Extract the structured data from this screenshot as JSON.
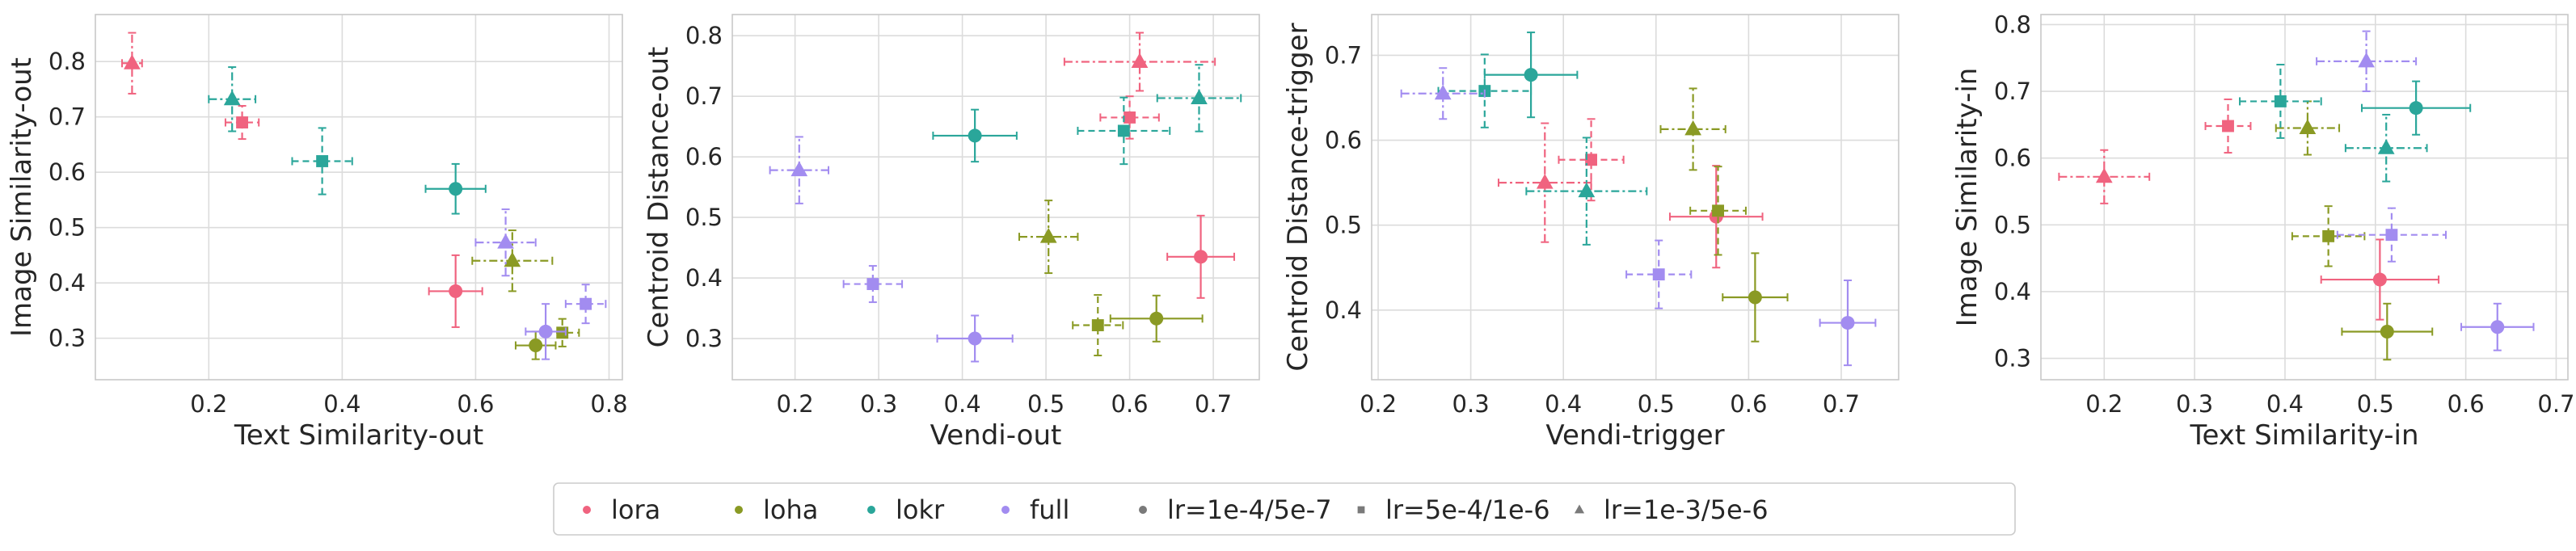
{
  "colors": {
    "lora": "#f0637f",
    "loha": "#8a9a24",
    "lokr": "#2aa69a",
    "full": "#a28cf0",
    "neutral": "#7a7a7a",
    "grid": "#dcdcdc",
    "spine": "#c8c8c8"
  },
  "legend": {
    "items": [
      {
        "label": "lora",
        "kind": "color",
        "key": "lora"
      },
      {
        "label": "loha",
        "kind": "color",
        "key": "loha"
      },
      {
        "label": "lokr",
        "kind": "color",
        "key": "lokr"
      },
      {
        "label": "full",
        "kind": "color",
        "key": "full"
      },
      {
        "label": "lr=1e-4/5e-7",
        "kind": "marker",
        "marker": "circle"
      },
      {
        "label": "lr=5e-4/1e-6",
        "kind": "marker",
        "marker": "square"
      },
      {
        "label": "lr=1e-3/5e-6",
        "kind": "marker",
        "marker": "triangle"
      }
    ]
  },
  "chart_data": [
    {
      "type": "scatter",
      "xlabel": "Text Similarity-out",
      "ylabel": "Image Similarity-out",
      "xlim": [
        0.03,
        0.82
      ],
      "ylim": [
        0.225,
        0.885
      ],
      "xticks": [
        0.2,
        0.4,
        0.6,
        0.8
      ],
      "yticks": [
        0.3,
        0.4,
        0.5,
        0.6,
        0.7,
        0.8
      ],
      "xtick_labels": [
        "0.2",
        "0.4",
        "0.6",
        "0.8"
      ],
      "ytick_labels": [
        "0.3",
        "0.4",
        "0.5",
        "0.6",
        "0.7",
        "0.8"
      ],
      "grid": true,
      "points": [
        {
          "method": "lora",
          "lr": "lr=1e-4/5e-7",
          "x": 0.57,
          "y": 0.385,
          "xerr": 0.04,
          "yerr": 0.065
        },
        {
          "method": "lora",
          "lr": "lr=5e-4/1e-6",
          "x": 0.25,
          "y": 0.69,
          "xerr": 0.025,
          "yerr": 0.03
        },
        {
          "method": "lora",
          "lr": "lr=1e-3/5e-6",
          "x": 0.085,
          "y": 0.797,
          "xerr": 0.015,
          "yerr": 0.055
        },
        {
          "method": "loha",
          "lr": "lr=1e-4/5e-7",
          "x": 0.69,
          "y": 0.287,
          "xerr": 0.03,
          "yerr": 0.025
        },
        {
          "method": "loha",
          "lr": "lr=5e-4/1e-6",
          "x": 0.73,
          "y": 0.31,
          "xerr": 0.025,
          "yerr": 0.025
        },
        {
          "method": "loha",
          "lr": "lr=1e-3/5e-6",
          "x": 0.655,
          "y": 0.44,
          "xerr": 0.06,
          "yerr": 0.055
        },
        {
          "method": "lokr",
          "lr": "lr=1e-4/5e-7",
          "x": 0.57,
          "y": 0.57,
          "xerr": 0.045,
          "yerr": 0.045
        },
        {
          "method": "lokr",
          "lr": "lr=5e-4/1e-6",
          "x": 0.37,
          "y": 0.62,
          "xerr": 0.045,
          "yerr": 0.06
        },
        {
          "method": "lokr",
          "lr": "lr=1e-3/5e-6",
          "x": 0.235,
          "y": 0.732,
          "xerr": 0.035,
          "yerr": 0.058
        },
        {
          "method": "full",
          "lr": "lr=1e-4/5e-7",
          "x": 0.705,
          "y": 0.312,
          "xerr": 0.03,
          "yerr": 0.05
        },
        {
          "method": "full",
          "lr": "lr=5e-4/1e-6",
          "x": 0.765,
          "y": 0.362,
          "xerr": 0.03,
          "yerr": 0.035
        },
        {
          "method": "full",
          "lr": "lr=1e-3/5e-6",
          "x": 0.645,
          "y": 0.473,
          "xerr": 0.045,
          "yerr": 0.06
        }
      ]
    },
    {
      "type": "scatter",
      "xlabel": "Vendi-out",
      "ylabel": "Centroid Distance-out",
      "xlim": [
        0.125,
        0.755
      ],
      "ylim": [
        0.232,
        0.835
      ],
      "xticks": [
        0.2,
        0.3,
        0.4,
        0.5,
        0.6,
        0.7
      ],
      "yticks": [
        0.3,
        0.4,
        0.5,
        0.6,
        0.7,
        0.8
      ],
      "xtick_labels": [
        "0.2",
        "0.3",
        "0.4",
        "0.5",
        "0.6",
        "0.7"
      ],
      "ytick_labels": [
        "0.3",
        "0.4",
        "0.5",
        "0.6",
        "0.7",
        "0.8"
      ],
      "grid": true,
      "points": [
        {
          "method": "lora",
          "lr": "lr=1e-4/5e-7",
          "x": 0.685,
          "y": 0.435,
          "xerr": 0.04,
          "yerr": 0.068
        },
        {
          "method": "lora",
          "lr": "lr=5e-4/1e-6",
          "x": 0.6,
          "y": 0.665,
          "xerr": 0.035,
          "yerr": 0.035
        },
        {
          "method": "lora",
          "lr": "lr=1e-3/5e-6",
          "x": 0.612,
          "y": 0.757,
          "xerr": 0.09,
          "yerr": 0.048
        },
        {
          "method": "loha",
          "lr": "lr=1e-4/5e-7",
          "x": 0.632,
          "y": 0.333,
          "xerr": 0.055,
          "yerr": 0.038
        },
        {
          "method": "loha",
          "lr": "lr=5e-4/1e-6",
          "x": 0.562,
          "y": 0.322,
          "xerr": 0.03,
          "yerr": 0.05
        },
        {
          "method": "loha",
          "lr": "lr=1e-3/5e-6",
          "x": 0.503,
          "y": 0.468,
          "xerr": 0.035,
          "yerr": 0.06
        },
        {
          "method": "lokr",
          "lr": "lr=1e-4/5e-7",
          "x": 0.415,
          "y": 0.635,
          "xerr": 0.05,
          "yerr": 0.043
        },
        {
          "method": "lokr",
          "lr": "lr=5e-4/1e-6",
          "x": 0.593,
          "y": 0.643,
          "xerr": 0.055,
          "yerr": 0.055
        },
        {
          "method": "lokr",
          "lr": "lr=1e-3/5e-6",
          "x": 0.683,
          "y": 0.697,
          "xerr": 0.05,
          "yerr": 0.055
        },
        {
          "method": "full",
          "lr": "lr=1e-4/5e-7",
          "x": 0.415,
          "y": 0.3,
          "xerr": 0.045,
          "yerr": 0.038
        },
        {
          "method": "full",
          "lr": "lr=5e-4/1e-6",
          "x": 0.293,
          "y": 0.39,
          "xerr": 0.035,
          "yerr": 0.03
        },
        {
          "method": "full",
          "lr": "lr=1e-3/5e-6",
          "x": 0.205,
          "y": 0.578,
          "xerr": 0.035,
          "yerr": 0.055
        }
      ]
    },
    {
      "type": "scatter",
      "xlabel": "Vendi-trigger",
      "ylabel": "Centroid Distance-trigger",
      "xlim": [
        0.193,
        0.762
      ],
      "ylim": [
        0.318,
        0.748
      ],
      "xticks": [
        0.2,
        0.3,
        0.4,
        0.5,
        0.6,
        0.7
      ],
      "yticks": [
        0.4,
        0.5,
        0.6,
        0.7
      ],
      "xtick_labels": [
        "0.2",
        "0.3",
        "0.4",
        "0.5",
        "0.6",
        "0.7"
      ],
      "ytick_labels": [
        "0.4",
        "0.5",
        "0.6",
        "0.7"
      ],
      "grid": true,
      "points": [
        {
          "method": "lora",
          "lr": "lr=1e-4/5e-7",
          "x": 0.565,
          "y": 0.51,
          "xerr": 0.05,
          "yerr": 0.06
        },
        {
          "method": "lora",
          "lr": "lr=5e-4/1e-6",
          "x": 0.43,
          "y": 0.577,
          "xerr": 0.035,
          "yerr": 0.048
        },
        {
          "method": "lora",
          "lr": "lr=1e-3/5e-6",
          "x": 0.38,
          "y": 0.55,
          "xerr": 0.05,
          "yerr": 0.07
        },
        {
          "method": "loha",
          "lr": "lr=1e-4/5e-7",
          "x": 0.607,
          "y": 0.415,
          "xerr": 0.035,
          "yerr": 0.052
        },
        {
          "method": "loha",
          "lr": "lr=5e-4/1e-6",
          "x": 0.567,
          "y": 0.517,
          "xerr": 0.03,
          "yerr": 0.052
        },
        {
          "method": "loha",
          "lr": "lr=1e-3/5e-6",
          "x": 0.54,
          "y": 0.613,
          "xerr": 0.035,
          "yerr": 0.048
        },
        {
          "method": "lokr",
          "lr": "lr=1e-4/5e-7",
          "x": 0.365,
          "y": 0.677,
          "xerr": 0.05,
          "yerr": 0.05
        },
        {
          "method": "lokr",
          "lr": "lr=5e-4/1e-6",
          "x": 0.315,
          "y": 0.658,
          "xerr": 0.05,
          "yerr": 0.043
        },
        {
          "method": "lokr",
          "lr": "lr=1e-3/5e-6",
          "x": 0.425,
          "y": 0.54,
          "xerr": 0.065,
          "yerr": 0.063
        },
        {
          "method": "full",
          "lr": "lr=1e-4/5e-7",
          "x": 0.707,
          "y": 0.385,
          "xerr": 0.03,
          "yerr": 0.05
        },
        {
          "method": "full",
          "lr": "lr=5e-4/1e-6",
          "x": 0.503,
          "y": 0.442,
          "xerr": 0.035,
          "yerr": 0.04
        },
        {
          "method": "full",
          "lr": "lr=1e-3/5e-6",
          "x": 0.27,
          "y": 0.655,
          "xerr": 0.045,
          "yerr": 0.03
        }
      ]
    },
    {
      "type": "scatter",
      "xlabel": "Text Similarity-in",
      "ylabel": "Image Similarity-in",
      "xlim": [
        0.13,
        0.713
      ],
      "ylim": [
        0.268,
        0.815
      ],
      "xticks": [
        0.2,
        0.3,
        0.4,
        0.5,
        0.6,
        0.7
      ],
      "yticks": [
        0.3,
        0.4,
        0.5,
        0.6,
        0.7,
        0.8
      ],
      "xtick_labels": [
        "0.2",
        "0.3",
        "0.4",
        "0.5",
        "0.6",
        "0.7"
      ],
      "ytick_labels": [
        "0.3",
        "0.4",
        "0.5",
        "0.6",
        "0.7",
        "0.8"
      ],
      "grid": true,
      "points": [
        {
          "method": "lora",
          "lr": "lr=1e-4/5e-7",
          "x": 0.505,
          "y": 0.418,
          "xerr": 0.065,
          "yerr": 0.06
        },
        {
          "method": "lora",
          "lr": "lr=5e-4/1e-6",
          "x": 0.337,
          "y": 0.648,
          "xerr": 0.025,
          "yerr": 0.04
        },
        {
          "method": "lora",
          "lr": "lr=1e-3/5e-6",
          "x": 0.2,
          "y": 0.572,
          "xerr": 0.05,
          "yerr": 0.04
        },
        {
          "method": "loha",
          "lr": "lr=1e-4/5e-7",
          "x": 0.513,
          "y": 0.34,
          "xerr": 0.05,
          "yerr": 0.042
        },
        {
          "method": "loha",
          "lr": "lr=5e-4/1e-6",
          "x": 0.448,
          "y": 0.483,
          "xerr": 0.04,
          "yerr": 0.045
        },
        {
          "method": "loha",
          "lr": "lr=1e-3/5e-6",
          "x": 0.425,
          "y": 0.645,
          "xerr": 0.035,
          "yerr": 0.04
        },
        {
          "method": "lokr",
          "lr": "lr=1e-4/5e-7",
          "x": 0.545,
          "y": 0.675,
          "xerr": 0.06,
          "yerr": 0.04
        },
        {
          "method": "lokr",
          "lr": "lr=5e-4/1e-6",
          "x": 0.395,
          "y": 0.685,
          "xerr": 0.045,
          "yerr": 0.055
        },
        {
          "method": "lokr",
          "lr": "lr=1e-3/5e-6",
          "x": 0.512,
          "y": 0.615,
          "xerr": 0.045,
          "yerr": 0.05
        },
        {
          "method": "full",
          "lr": "lr=1e-4/5e-7",
          "x": 0.635,
          "y": 0.347,
          "xerr": 0.04,
          "yerr": 0.035
        },
        {
          "method": "full",
          "lr": "lr=5e-4/1e-6",
          "x": 0.518,
          "y": 0.485,
          "xerr": 0.06,
          "yerr": 0.04
        },
        {
          "method": "full",
          "lr": "lr=1e-3/5e-6",
          "x": 0.49,
          "y": 0.745,
          "xerr": 0.055,
          "yerr": 0.045
        }
      ]
    }
  ]
}
